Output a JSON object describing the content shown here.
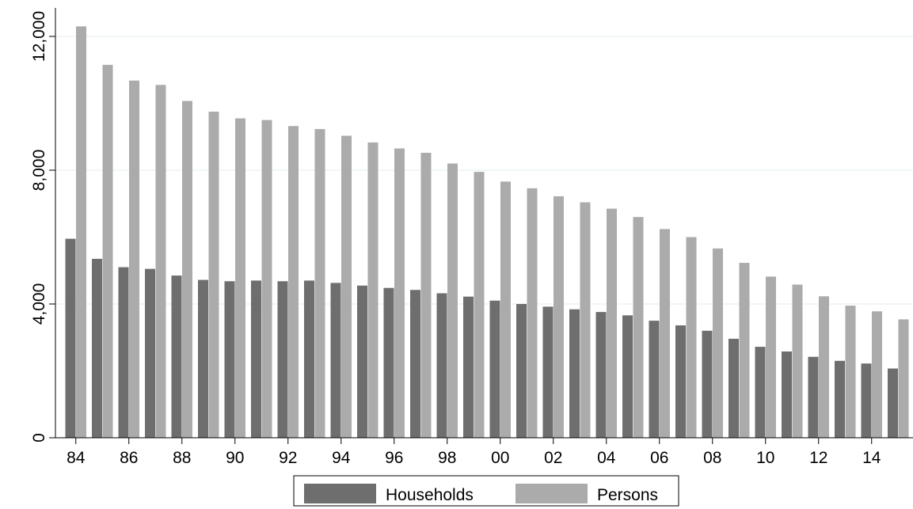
{
  "chart_data": {
    "type": "bar",
    "title": "",
    "xlabel": "",
    "ylabel": "",
    "categories": [
      "84",
      "85",
      "86",
      "87",
      "88",
      "89",
      "90",
      "91",
      "92",
      "93",
      "94",
      "95",
      "96",
      "97",
      "98",
      "99",
      "00",
      "01",
      "02",
      "03",
      "04",
      "05",
      "06",
      "07",
      "08",
      "09",
      "10",
      "11",
      "12",
      "13",
      "14",
      "15"
    ],
    "tick_labels_x": [
      "84",
      "86",
      "88",
      "90",
      "92",
      "94",
      "96",
      "98",
      "00",
      "02",
      "04",
      "06",
      "08",
      "10",
      "12",
      "14"
    ],
    "ylim": [
      0,
      12000
    ],
    "yticks": [
      0,
      4000,
      8000,
      12000
    ],
    "ytick_labels": [
      "0",
      "4,000",
      "8,000",
      "12,000"
    ],
    "grid": true,
    "legend_position": "bottom-center",
    "series": [
      {
        "name": "Households",
        "color": "#6e6e6e",
        "values": [
          5950,
          5350,
          5100,
          5050,
          4850,
          4720,
          4680,
          4700,
          4680,
          4700,
          4630,
          4550,
          4480,
          4420,
          4320,
          4220,
          4100,
          4000,
          3920,
          3840,
          3760,
          3660,
          3500,
          3360,
          3200,
          2960,
          2720,
          2580,
          2420,
          2300,
          2220,
          2070
        ]
      },
      {
        "name": "Persons",
        "color": "#ababab",
        "values": [
          12300,
          11150,
          10680,
          10550,
          10070,
          9750,
          9550,
          9500,
          9320,
          9230,
          9030,
          8830,
          8650,
          8520,
          8200,
          7950,
          7660,
          7460,
          7220,
          7040,
          6850,
          6600,
          6240,
          6000,
          5660,
          5230,
          4820,
          4580,
          4230,
          3950,
          3780,
          3540
        ]
      }
    ]
  }
}
